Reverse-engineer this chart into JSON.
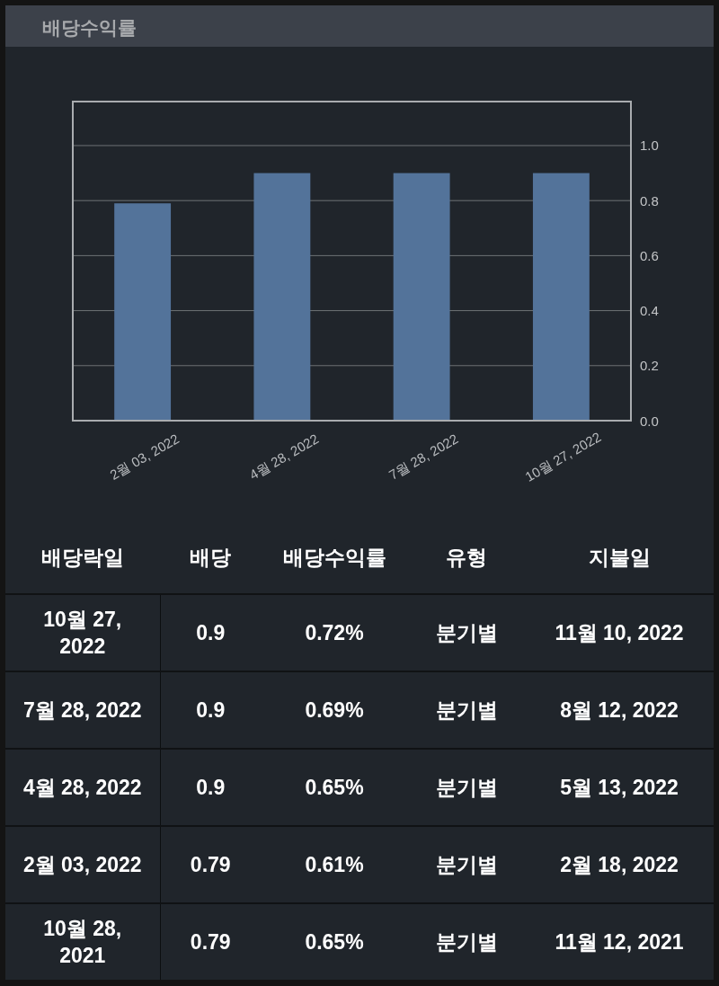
{
  "chart_data": [
    {
      "type": "bar",
      "title": "배당수익률",
      "categories": [
        "2월 03, 2022",
        "4월 28, 2022",
        "7월 28, 2022",
        "10월 27, 2022"
      ],
      "values": [
        0.79,
        0.9,
        0.9,
        0.9
      ],
      "color": "#53739a",
      "ylim": [
        0,
        1.16
      ],
      "yticks": [
        {
          "value": 0,
          "label": "0.0"
        },
        {
          "value": 0.2,
          "label": "0.2"
        },
        {
          "value": 0.4,
          "label": "0.4"
        },
        {
          "value": 0.6,
          "label": "0.6"
        },
        {
          "value": 0.8,
          "label": "0.8"
        },
        {
          "value": 1,
          "label": "1.0"
        }
      ],
      "grid": "y"
    },
    {
      "type": "other",
      "categories": [
        "배당락일",
        "배당",
        "배당수익률",
        "유형",
        "지불일"
      ],
      "annotations": [
        "10월 27, 2022",
        "0.9",
        "0.72%",
        "분기별",
        "11월 10, 2022",
        "7월 28, 2022",
        "0.9",
        "0.69%",
        "분기별",
        "8월 12, 2022",
        "4월 28, 2022",
        "0.9",
        "0.65%",
        "분기별",
        "5월 13, 2022",
        "2월 03, 2022",
        "0.79",
        "0.61%",
        "분기별",
        "2월 18, 2022",
        "10월 28, 2021",
        "0.79",
        "0.65%",
        "분기별",
        "11월 12, 2021"
      ]
    }
  ]
}
